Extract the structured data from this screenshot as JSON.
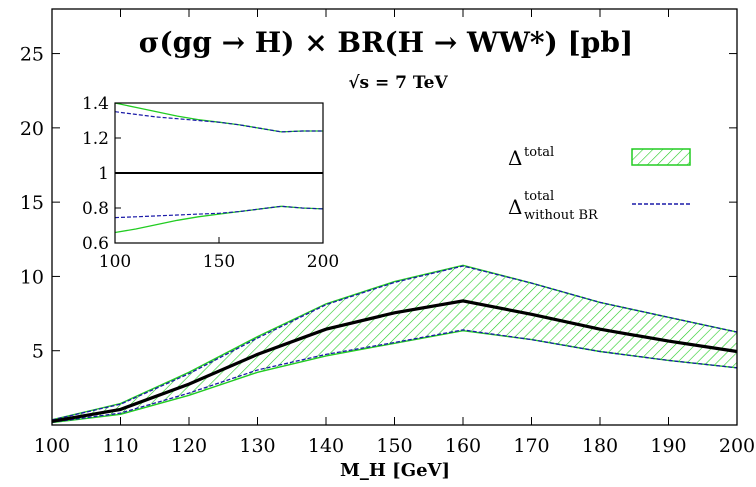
{
  "chart_data": [
    {
      "type": "line",
      "title": "σ(gg → H) × BR(H → WW*) [pb]",
      "subtitle": "√s = 7 TeV",
      "xlabel": "M_H [GeV]",
      "ylabel": "",
      "xlim": [
        100,
        200
      ],
      "ylim": [
        0,
        28
      ],
      "xticks": [
        100,
        110,
        120,
        130,
        140,
        150,
        160,
        170,
        180,
        190,
        200
      ],
      "yticks": [
        5,
        10,
        15,
        20,
        25
      ],
      "x": [
        100,
        110,
        120,
        130,
        140,
        150,
        160,
        170,
        180,
        190,
        200
      ],
      "series": [
        {
          "name": "central",
          "values": [
            0.25,
            1.05,
            2.75,
            4.75,
            6.45,
            7.55,
            8.35,
            7.45,
            6.45,
            5.65,
            4.95
          ]
        },
        {
          "name": "Δ total upper",
          "values": [
            0.35,
            1.45,
            3.55,
            5.95,
            8.15,
            9.65,
            10.75,
            9.55,
            8.25,
            7.25,
            6.25
          ]
        },
        {
          "name": "Δ total lower",
          "values": [
            0.17,
            0.72,
            2.0,
            3.55,
            4.65,
            5.5,
            6.35,
            5.75,
            4.95,
            4.35,
            3.85
          ]
        },
        {
          "name": "Δ without BR upper",
          "values": [
            0.34,
            1.4,
            3.45,
            5.85,
            8.1,
            9.6,
            10.7,
            9.55,
            8.25,
            7.25,
            6.25
          ]
        },
        {
          "name": "Δ without BR lower",
          "values": [
            0.19,
            0.8,
            2.15,
            3.7,
            4.75,
            5.55,
            6.4,
            5.75,
            4.95,
            4.35,
            3.85
          ]
        }
      ],
      "legend": {
        "placement": "right",
        "band_label": "Δ",
        "band_sup": "total",
        "line_label": "Δ",
        "line_sup": "total",
        "line_sub": "without BR"
      },
      "colors": {
        "band": "#22cc22",
        "dashed": "#1a1aa8",
        "central": "#000000"
      }
    },
    {
      "type": "line",
      "title": "",
      "xlim": [
        100,
        200
      ],
      "ylim": [
        0.6,
        1.4
      ],
      "xticks": [
        100,
        150,
        200
      ],
      "yticks": [
        0.6,
        0.8,
        1,
        1.2,
        1.4
      ],
      "ytick_labels": [
        "0.6",
        "0.8",
        "1",
        "1.2",
        "1.4"
      ],
      "x": [
        100,
        110,
        120,
        130,
        140,
        150,
        160,
        170,
        180,
        190,
        200
      ],
      "series": [
        {
          "name": "ratio total upper",
          "values": [
            1.4,
            1.375,
            1.35,
            1.325,
            1.305,
            1.29,
            1.275,
            1.255,
            1.235,
            1.24,
            1.24
          ]
        },
        {
          "name": "ratio total lower",
          "values": [
            0.66,
            0.68,
            0.705,
            0.73,
            0.75,
            0.765,
            0.78,
            0.795,
            0.81,
            0.8,
            0.795
          ]
        },
        {
          "name": "ratio without BR upper",
          "values": [
            1.35,
            1.335,
            1.32,
            1.31,
            1.3,
            1.29,
            1.275,
            1.255,
            1.235,
            1.24,
            1.24
          ]
        },
        {
          "name": "ratio without BR lower",
          "values": [
            0.745,
            0.75,
            0.755,
            0.76,
            0.765,
            0.77,
            0.78,
            0.795,
            0.81,
            0.8,
            0.795
          ]
        },
        {
          "name": "unity",
          "values": [
            1,
            1,
            1,
            1,
            1,
            1,
            1,
            1,
            1,
            1,
            1
          ]
        }
      ]
    }
  ]
}
